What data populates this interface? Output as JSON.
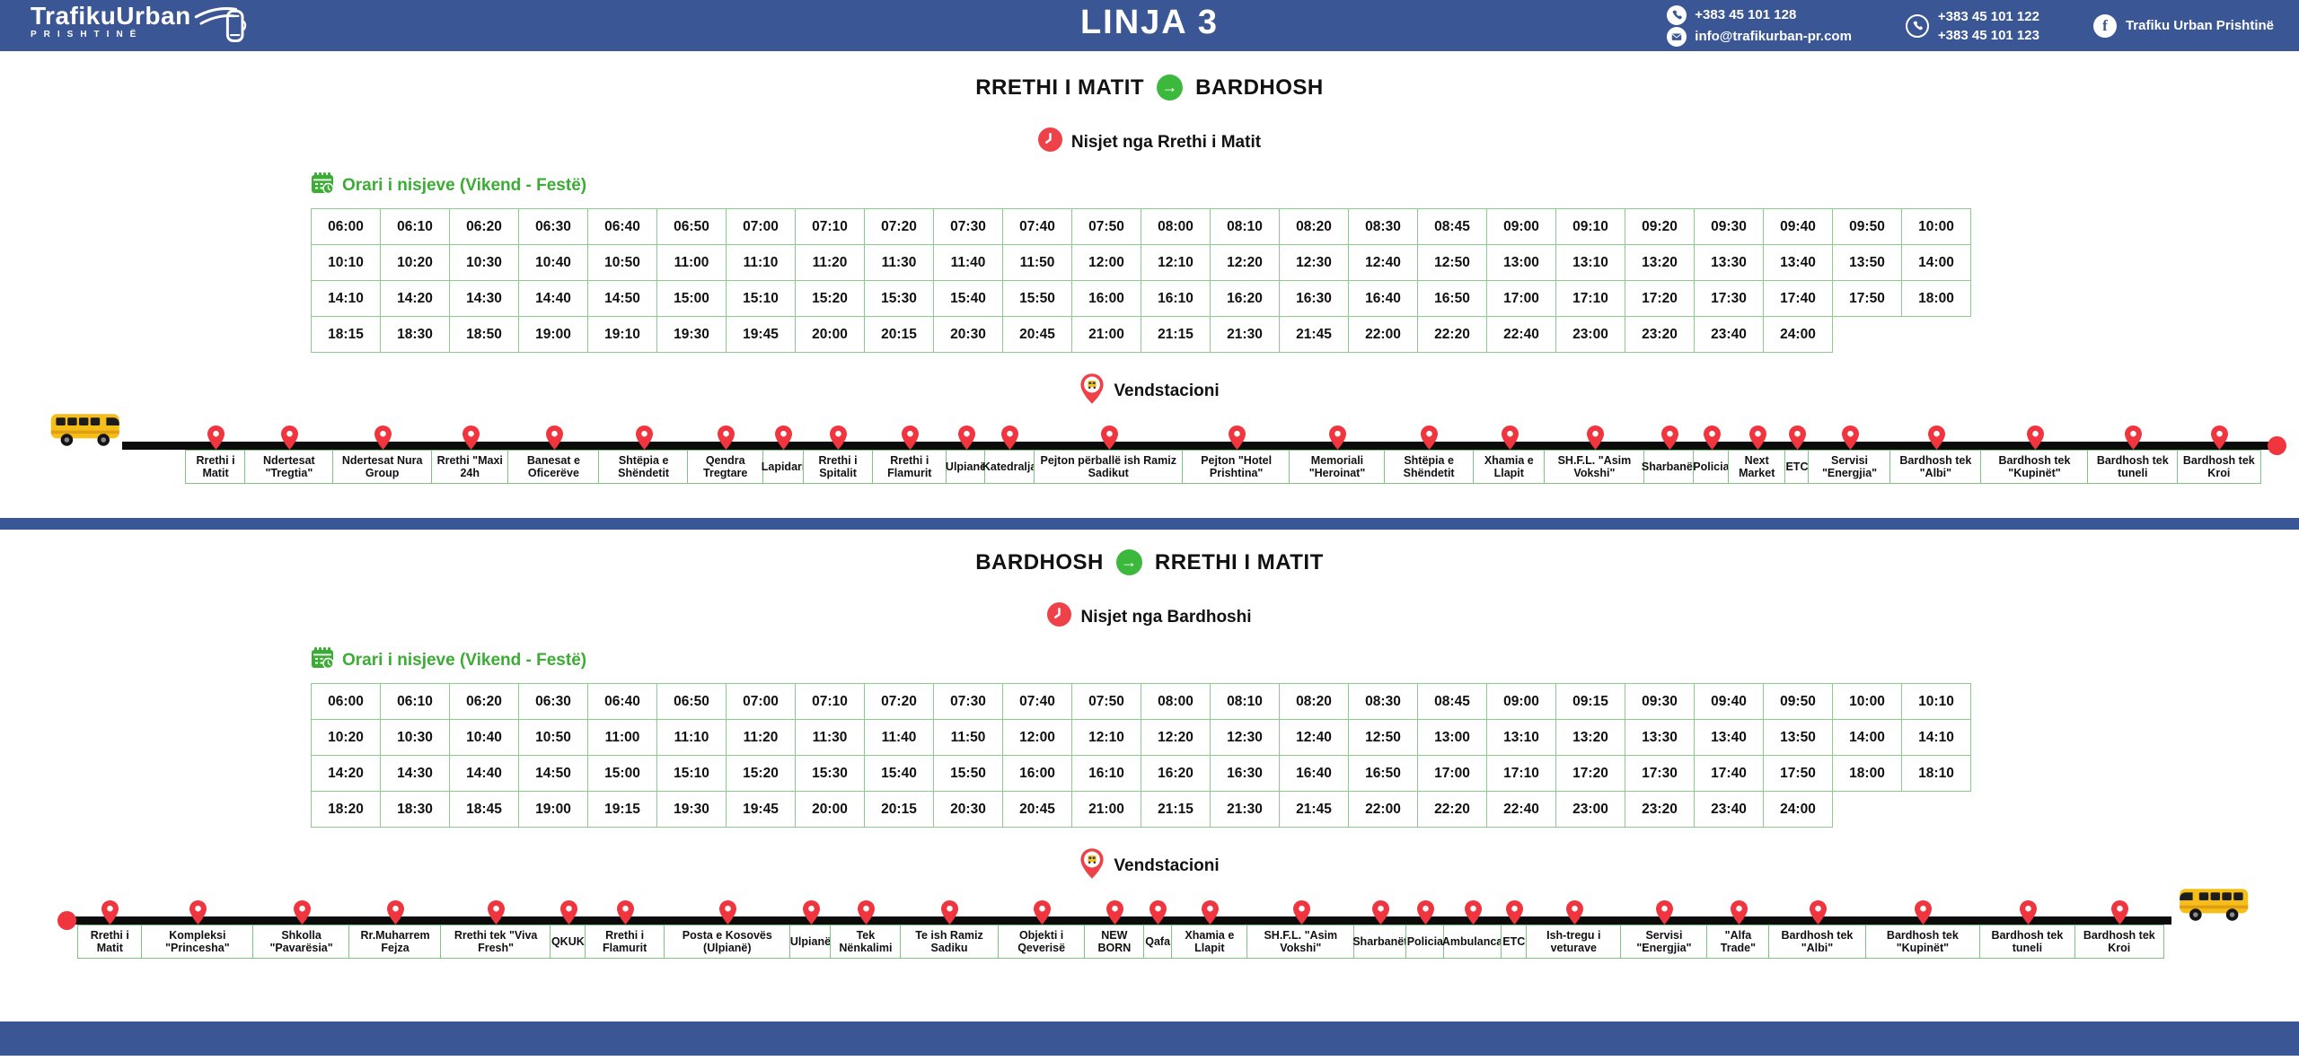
{
  "header": {
    "logo": {
      "title": "TrafikuUrban",
      "subtitle": "PRISHTINË"
    },
    "line_title": "LINJA 3",
    "contacts": {
      "phone": "+383 45 101 128",
      "email": "info@trafikurban-pr.com",
      "viber1": "+383 45 101 122",
      "viber2": "+383 45 101 123",
      "facebook": "Trafiku Urban Prishtinë"
    }
  },
  "sections": [
    {
      "route_from": "RRETHI I MATIT",
      "route_to": "BARDHOSH",
      "departures_label": "Nisjet nga Rrethi i Matit",
      "schedule_label": "Orari i nisjeve (Vikend - Festë)",
      "stations_label": "Vendstacioni",
      "times": [
        [
          "06:00",
          "06:10",
          "06:20",
          "06:30",
          "06:40",
          "06:50",
          "07:00",
          "07:10",
          "07:20",
          "07:30",
          "07:40",
          "07:50",
          "08:00",
          "08:10",
          "08:20",
          "08:30",
          "08:45",
          "09:00",
          "09:10",
          "09:20",
          "09:30",
          "09:40",
          "09:50",
          "10:00"
        ],
        [
          "10:10",
          "10:20",
          "10:30",
          "10:40",
          "10:50",
          "11:00",
          "11:10",
          "11:20",
          "11:30",
          "11:40",
          "11:50",
          "12:00",
          "12:10",
          "12:20",
          "12:30",
          "12:40",
          "12:50",
          "13:00",
          "13:10",
          "13:20",
          "13:30",
          "13:40",
          "13:50",
          "14:00"
        ],
        [
          "14:10",
          "14:20",
          "14:30",
          "14:40",
          "14:50",
          "15:00",
          "15:10",
          "15:20",
          "15:30",
          "15:40",
          "15:50",
          "16:00",
          "16:10",
          "16:20",
          "16:30",
          "16:40",
          "16:50",
          "17:00",
          "17:10",
          "17:20",
          "17:30",
          "17:40",
          "17:50",
          "18:00"
        ],
        [
          "18:15",
          "18:30",
          "18:50",
          "19:00",
          "19:10",
          "19:30",
          "19:45",
          "20:00",
          "20:15",
          "20:30",
          "20:45",
          "21:00",
          "21:15",
          "21:30",
          "21:45",
          "22:00",
          "22:20",
          "22:40",
          "23:00",
          "23:20",
          "23:40",
          "24:00"
        ]
      ],
      "stations": [
        "Rrethi i Matit",
        "Ndertesat \"Tregtia\"",
        "Ndertesat Nura Group",
        "Rrethi \"Maxi 24h",
        "Banesat e Oficerëve",
        "Shtëpia e Shëndetit",
        "Qendra Tregtare",
        "Lapidari",
        "Rrethi i Spitalit",
        "Rrethi i Flamurit",
        "Ulpianë",
        "Katedralja",
        "Pejton përballë ish Ramiz Sadikut",
        "Pejton \"Hotel Prishtina\"",
        "Memoriali \"Heroinat\"",
        "Shtëpia e Shëndetit",
        "Xhamia e Llapit",
        "SH.F.L. \"Asim Vokshi\"",
        "Sharbanët",
        "Policia",
        "Next Market",
        "ETC",
        "Servisi \"Energjia\"",
        "Bardhosh tek \"Albi\"",
        "Bardhosh tek \"Kupinët\"",
        "Bardhosh tek tuneli",
        "Bardhosh tek Kroi"
      ]
    },
    {
      "route_from": "BARDHOSH",
      "route_to": "RRETHI I MATIT",
      "departures_label": "Nisjet nga Bardhoshi",
      "schedule_label": "Orari i nisjeve (Vikend - Festë)",
      "stations_label": "Vendstacioni",
      "times": [
        [
          "06:00",
          "06:10",
          "06:20",
          "06:30",
          "06:40",
          "06:50",
          "07:00",
          "07:10",
          "07:20",
          "07:30",
          "07:40",
          "07:50",
          "08:00",
          "08:10",
          "08:20",
          "08:30",
          "08:45",
          "09:00",
          "09:15",
          "09:30",
          "09:40",
          "09:50",
          "10:00",
          "10:10"
        ],
        [
          "10:20",
          "10:30",
          "10:40",
          "10:50",
          "11:00",
          "11:10",
          "11:20",
          "11:30",
          "11:40",
          "11:50",
          "12:00",
          "12:10",
          "12:20",
          "12:30",
          "12:40",
          "12:50",
          "13:00",
          "13:10",
          "13:20",
          "13:30",
          "13:40",
          "13:50",
          "14:00",
          "14:10"
        ],
        [
          "14:20",
          "14:30",
          "14:40",
          "14:50",
          "15:00",
          "15:10",
          "15:20",
          "15:30",
          "15:40",
          "15:50",
          "16:00",
          "16:10",
          "16:20",
          "16:30",
          "16:40",
          "16:50",
          "17:00",
          "17:10",
          "17:20",
          "17:30",
          "17:40",
          "17:50",
          "18:00",
          "18:10"
        ],
        [
          "18:20",
          "18:30",
          "18:45",
          "19:00",
          "19:15",
          "19:30",
          "19:45",
          "20:00",
          "20:15",
          "20:30",
          "20:45",
          "21:00",
          "21:15",
          "21:30",
          "21:45",
          "22:00",
          "22:20",
          "22:40",
          "23:00",
          "23:20",
          "23:40",
          "24:00"
        ]
      ],
      "stations": [
        "Rrethi i Matit",
        "Kompleksi \"Princesha\"",
        "Shkolla \"Pavarësia\"",
        "Rr.Muharrem Fejza",
        "Rrethi tek \"Viva Fresh\"",
        "QKUK",
        "Rrethi i Flamurit",
        "Posta e Kosovës (Ulpianë)",
        "Ulpianë",
        "Tek Nënkalimi",
        "Te ish Ramiz Sadiku",
        "Objekti i Qeverisë",
        "NEW BORN",
        "Qafa",
        "Xhamia e Llapit",
        "SH.F.L. \"Asim Vokshi\"",
        "Sharbanët",
        "Policia",
        "Ambulanca",
        "ETC",
        "Ish-tregu i veturave",
        "Servisi \"Energjia\"",
        "\"Alfa Trade\"",
        "Bardhosh tek \"Albi\"",
        "Bardhosh tek \"Kupinët\"",
        "Bardhosh tek tuneli",
        "Bardhosh tek Kroi"
      ]
    }
  ],
  "icons": {
    "arrow": "→",
    "facebook_glyph": "f"
  },
  "colors": {
    "header_blue": "#3A5695",
    "accent_green": "#3BAC34",
    "arrow_green": "#3CB93C",
    "table_border_green": "#8BCB8B",
    "accent_red": "#EE4148",
    "pin_red": "#F0353F",
    "route_line_black": "#0B0B0B",
    "bus_yellow": "#F6BE19"
  }
}
